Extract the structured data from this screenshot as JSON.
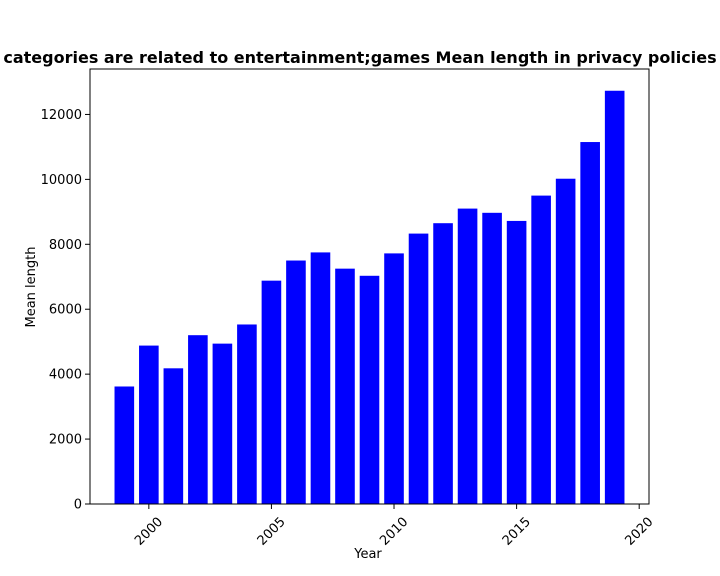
{
  "chart_data": {
    "type": "bar",
    "title": "categories are related to entertainment;games Mean length in privacy policies",
    "xlabel": "Year",
    "ylabel": "Mean length",
    "x": [
      1999,
      2000,
      2001,
      2002,
      2003,
      2004,
      2005,
      2006,
      2007,
      2008,
      2009,
      2010,
      2011,
      2012,
      2013,
      2014,
      2015,
      2016,
      2017,
      2018,
      2019
    ],
    "values": [
      3620,
      4880,
      4180,
      5200,
      4940,
      5530,
      6880,
      7500,
      7750,
      7250,
      7030,
      7720,
      8330,
      8650,
      9100,
      8970,
      8720,
      9500,
      10020,
      11150,
      12730
    ],
    "xlim": [
      1997.6,
      2020.4
    ],
    "ylim": [
      0,
      13400
    ],
    "x_ticks": [
      2000,
      2005,
      2010,
      2015,
      2020
    ],
    "x_tick_labels": [
      "2000",
      "2005",
      "2010",
      "2015",
      "2020"
    ],
    "y_ticks": [
      0,
      2000,
      4000,
      6000,
      8000,
      10000,
      12000
    ],
    "y_tick_labels": [
      "0",
      "2000",
      "4000",
      "6000",
      "8000",
      "10000",
      "12000"
    ],
    "bar_color": "#0000ff",
    "grid": false,
    "legend": "none"
  }
}
